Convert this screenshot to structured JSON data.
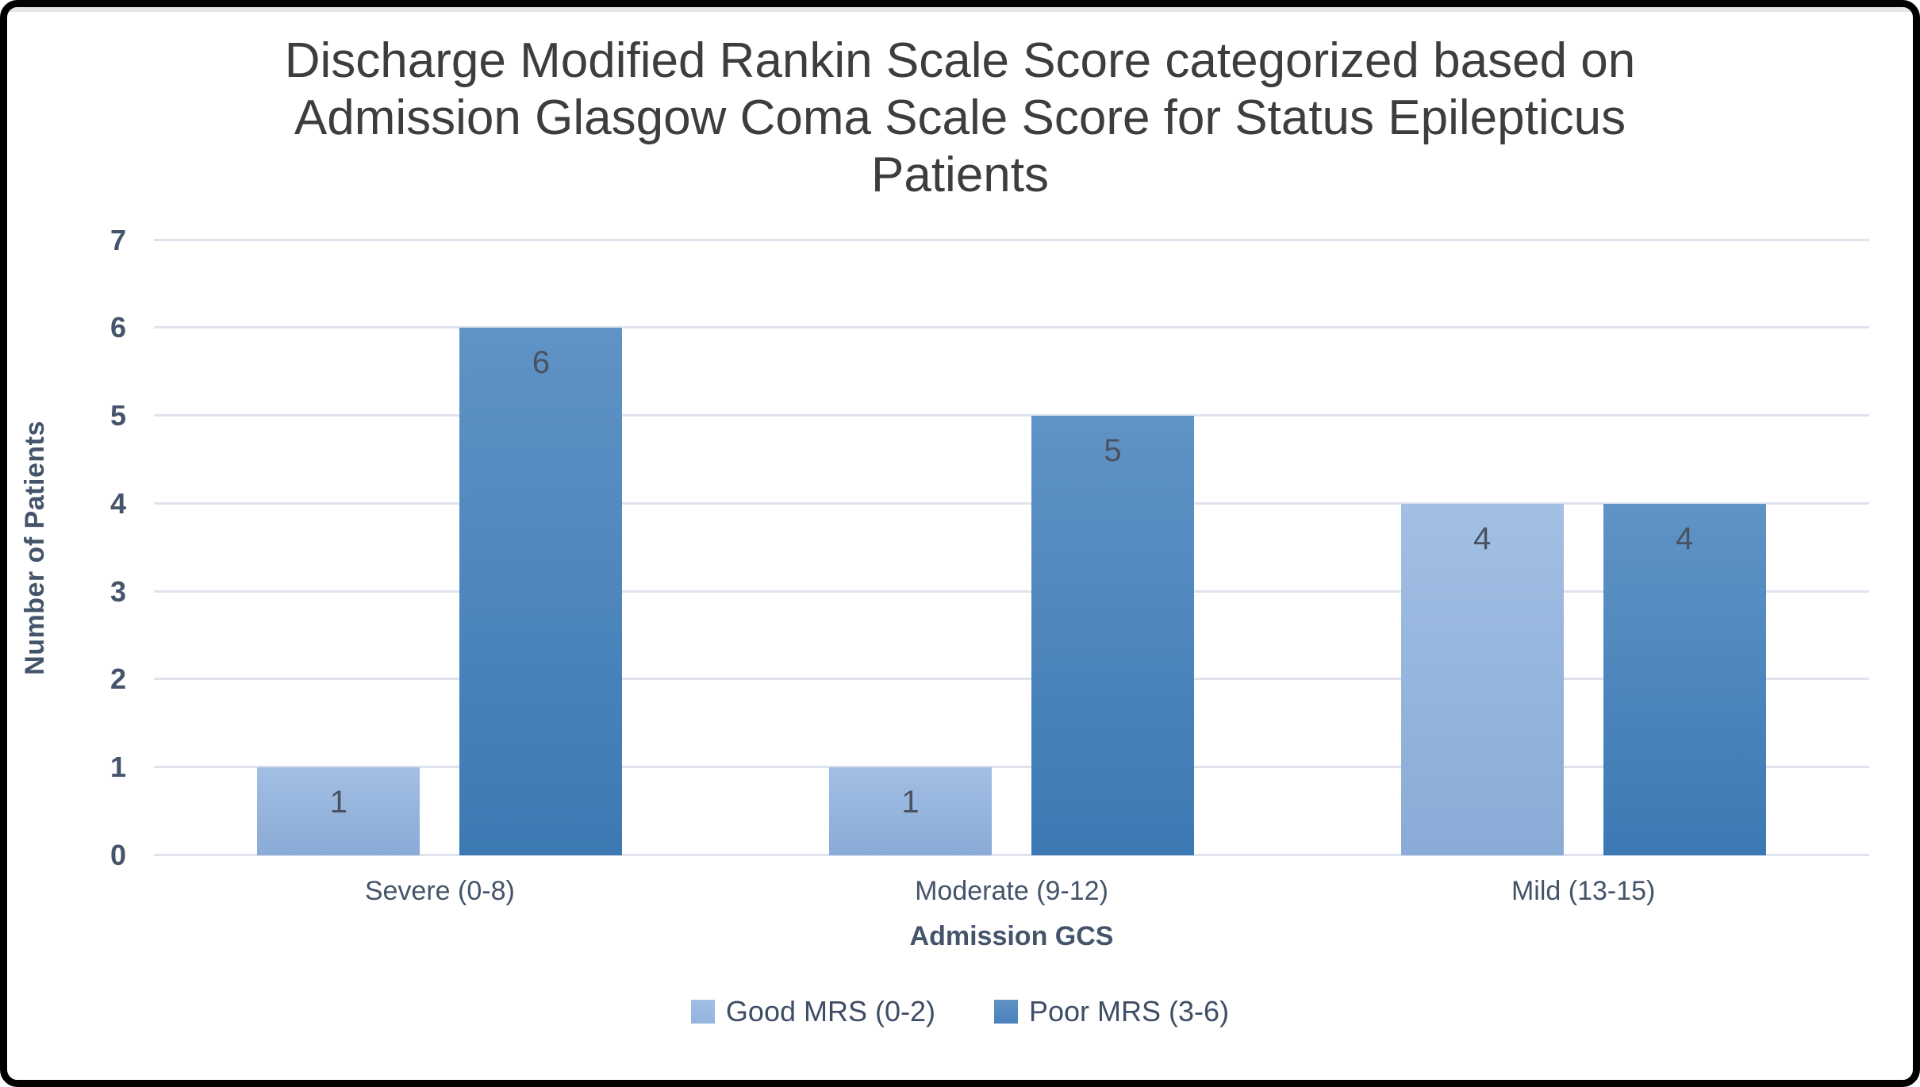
{
  "window": {
    "frame_color": "#000000",
    "topbar_color": "#e3e7ea",
    "background": "#ffffff"
  },
  "colors": {
    "title_text": "#3d3d3d",
    "axis_text": "#44546a",
    "data_label_text": "#4a5260",
    "gridline": "#dee3ee"
  },
  "chart_data": {
    "type": "bar",
    "title": "Discharge Modified Rankin Scale Score categorized based on Admission Glasgow Coma Scale Score for Status Epilepticus Patients",
    "xlabel": "Admission GCS",
    "ylabel": "Number of Patients",
    "categories": [
      "Severe (0-8)",
      "Moderate (9-12)",
      "Mild (13-15)"
    ],
    "series": [
      {
        "name": "Good MRS (0-2)",
        "values": [
          1,
          1,
          4
        ],
        "color_top": "#a2bfe4",
        "color_bottom": "#8aabd6",
        "legend_color": "#92b4dd"
      },
      {
        "name": "Poor MRS (3-6)",
        "values": [
          6,
          5,
          4
        ],
        "color_top": "#6093c6",
        "color_bottom": "#3c79b4",
        "legend_color": "#4a80ba"
      }
    ],
    "ylim": [
      0,
      7
    ],
    "yticks": [
      0,
      1,
      2,
      3,
      4,
      5,
      6,
      7
    ],
    "grid": true,
    "data_labels": true,
    "legend_position": "bottom"
  }
}
